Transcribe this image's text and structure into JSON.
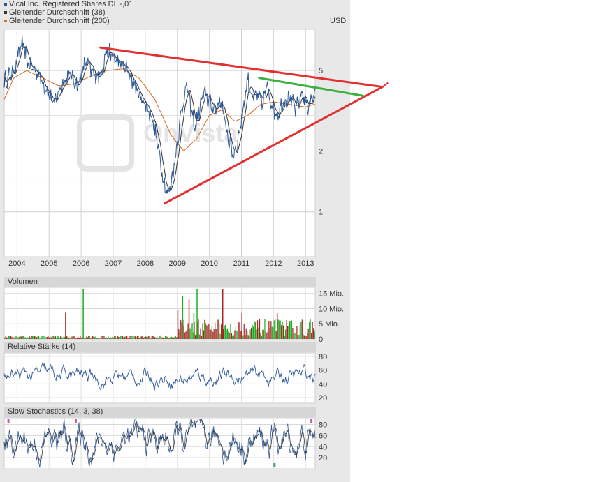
{
  "legend": {
    "main_series": "Vical Inc. Registered Shares DL -,01",
    "ma38": "Gleitender Durchschnitt (38)",
    "ma200": "Gleitender Durchschnitt (200)",
    "colors": {
      "price": "#2b5797",
      "ma38": "#333333",
      "ma200": "#d2691e"
    }
  },
  "currency": "USD",
  "watermark": "OnVista",
  "panels": {
    "volume": "Volumen",
    "rsi": "Relative Stärke (14)",
    "stoch": "Slow Stochastics (14, 3, 38)"
  },
  "chart_data": [
    {
      "type": "line",
      "x_ticks": [
        "2004",
        "2005",
        "2006",
        "2007",
        "2008",
        "2009",
        "2010",
        "2011",
        "2012",
        "2013"
      ],
      "y_ticks": [
        "5",
        "2",
        "1"
      ],
      "y_scale": "log",
      "xlim": [
        2003.6,
        2013.3
      ],
      "ylim": [
        0.6,
        8
      ],
      "price_anchors": [
        [
          2003.6,
          4.4
        ],
        [
          2003.9,
          5.0
        ],
        [
          2004.15,
          6.8
        ],
        [
          2004.4,
          5.2
        ],
        [
          2004.65,
          4.9
        ],
        [
          2004.9,
          4.1
        ],
        [
          2005.15,
          3.4
        ],
        [
          2005.4,
          4.3
        ],
        [
          2005.65,
          4.8
        ],
        [
          2005.9,
          4.2
        ],
        [
          2006.15,
          5.6
        ],
        [
          2006.4,
          4.7
        ],
        [
          2006.6,
          4.8
        ],
        [
          2006.8,
          6.3
        ],
        [
          2007.0,
          5.8
        ],
        [
          2007.2,
          5.4
        ],
        [
          2007.4,
          5.1
        ],
        [
          2007.6,
          4.5
        ],
        [
          2007.8,
          3.8
        ],
        [
          2008.0,
          3.4
        ],
        [
          2008.2,
          3.0
        ],
        [
          2008.4,
          2.1
        ],
        [
          2008.55,
          1.5
        ],
        [
          2008.7,
          1.2
        ],
        [
          2008.85,
          1.5
        ],
        [
          2009.0,
          2.2
        ],
        [
          2009.15,
          3.3
        ],
        [
          2009.3,
          4.3
        ],
        [
          2009.4,
          3.4
        ],
        [
          2009.55,
          2.6
        ],
        [
          2009.7,
          3.3
        ],
        [
          2009.85,
          3.9
        ],
        [
          2010.05,
          3.4
        ],
        [
          2010.2,
          3.2
        ],
        [
          2010.35,
          3.6
        ],
        [
          2010.5,
          2.7
        ],
        [
          2010.6,
          2.3
        ],
        [
          2010.75,
          1.9
        ],
        [
          2010.9,
          2.3
        ],
        [
          2011.05,
          3.2
        ],
        [
          2011.2,
          4.6
        ],
        [
          2011.35,
          3.6
        ],
        [
          2011.5,
          3.8
        ],
        [
          2011.65,
          3.4
        ],
        [
          2011.8,
          4.2
        ],
        [
          2011.95,
          3.4
        ],
        [
          2012.1,
          3.0
        ],
        [
          2012.3,
          3.5
        ],
        [
          2012.5,
          3.7
        ],
        [
          2012.7,
          3.2
        ],
        [
          2012.9,
          3.9
        ],
        [
          2013.05,
          3.3
        ],
        [
          2013.2,
          3.7
        ]
      ],
      "ma200_anchors": [
        [
          2003.6,
          3.6
        ],
        [
          2003.9,
          4.6
        ],
        [
          2004.3,
          5.0
        ],
        [
          2004.8,
          4.6
        ],
        [
          2005.3,
          4.2
        ],
        [
          2005.8,
          4.3
        ],
        [
          2006.3,
          4.7
        ],
        [
          2006.8,
          5.0
        ],
        [
          2007.3,
          5.1
        ],
        [
          2007.8,
          4.6
        ],
        [
          2008.3,
          3.6
        ],
        [
          2008.8,
          2.4
        ],
        [
          2009.2,
          2.0
        ],
        [
          2009.6,
          2.3
        ],
        [
          2010.0,
          3.0
        ],
        [
          2010.4,
          3.2
        ],
        [
          2010.8,
          2.8
        ],
        [
          2011.2,
          3.0
        ],
        [
          2011.6,
          3.4
        ],
        [
          2012.0,
          3.5
        ],
        [
          2012.5,
          3.4
        ],
        [
          2013.0,
          3.3
        ],
        [
          2013.25,
          3.4
        ]
      ],
      "trendlines": {
        "resistance": {
          "color": "#e03030",
          "points": [
            [
              2006.6,
              6.5
            ],
            [
              2015.4,
              4.15
            ]
          ]
        },
        "support": {
          "color": "#e03030",
          "points": [
            [
              2008.6,
              1.1
            ],
            [
              2015.4,
              4.15
            ]
          ]
        },
        "channel_top": {
          "color": "#3cb043",
          "points": [
            [
              2011.55,
              4.6
            ],
            [
              2014.8,
              3.75
            ]
          ]
        }
      }
    },
    {
      "type": "bar",
      "name": "Volumen",
      "y_ticks": [
        "15 Mio.",
        "10 Mio.",
        "5 Mio.",
        "0"
      ],
      "ylim": [
        0,
        17
      ],
      "up_color": "#22aa22",
      "down_color": "#aa2222",
      "spikes": [
        {
          "x": 2006.05,
          "value": 16.5,
          "up": true
        },
        {
          "x": 2005.5,
          "value": 8.6,
          "up": false
        },
        {
          "x": 2009.15,
          "value": 14,
          "up": true
        },
        {
          "x": 2009.35,
          "value": 13,
          "up": false
        },
        {
          "x": 2009.6,
          "value": 16.5,
          "up": true
        },
        {
          "x": 2010.4,
          "value": 16.5,
          "up": false
        },
        {
          "x": 2009.5,
          "value": 8.5,
          "up": true
        },
        {
          "x": 2009.0,
          "value": 9.5,
          "up": false
        },
        {
          "x": 2011.0,
          "value": 8.5,
          "up": false
        },
        {
          "x": 2012.1,
          "value": 8.5,
          "up": false
        }
      ]
    },
    {
      "type": "line",
      "name": "Relative Stärke (14)",
      "y_ticks": [
        "80",
        "60",
        "40",
        "20"
      ],
      "ylim": [
        12,
        85
      ]
    },
    {
      "type": "line",
      "name": "Slow Stochastics (14, 3, 38)",
      "y_ticks": [
        "80",
        "60",
        "40",
        "20"
      ],
      "ylim": [
        0,
        92
      ]
    }
  ]
}
